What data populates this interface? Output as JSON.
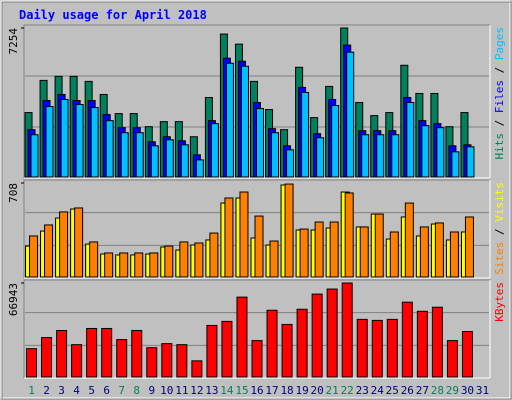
{
  "chart_data": [
    {
      "type": "bar",
      "title": "Daily usage for April 2018",
      "ylim": [
        0,
        7254
      ],
      "yticks": [
        7254
      ],
      "legend_separator": " / ",
      "series": [
        {
          "name": "Hits",
          "color": "#00805c",
          "values": [
            3136,
            4704,
            4900,
            4900,
            4655,
            4018,
            3087,
            3087,
            2450,
            2695,
            2695,
            1960,
            3871,
            6958,
            6468,
            4655,
            3283,
            2303,
            5341,
            2891,
            4410,
            7254,
            3626,
            2989,
            3136,
            5439,
            4067,
            4067,
            2450,
            3136,
            null
          ]
        },
        {
          "name": "Files",
          "color": "#0000ff",
          "values": [
            2303,
            3724,
            4018,
            3724,
            3724,
            3038,
            2401,
            2401,
            1715,
            1960,
            1764,
            1078,
            2744,
            5782,
            5635,
            3626,
            2352,
            1519,
            4361,
            2107,
            3773,
            6419,
            2254,
            2254,
            2254,
            3871,
            2744,
            2597,
            1519,
            1568,
            null
          ]
        },
        {
          "name": "Pages",
          "color": "#00c0ff",
          "values": [
            2058,
            3430,
            3773,
            3528,
            3381,
            2744,
            2156,
            2156,
            1519,
            1813,
            1568,
            833,
            2597,
            5537,
            5390,
            3332,
            2156,
            1323,
            4116,
            1911,
            3479,
            6076,
            2058,
            2058,
            2058,
            3626,
            2499,
            2401,
            1225,
            1470,
            null
          ]
        }
      ]
    },
    {
      "type": "bar",
      "ylim": [
        0,
        708
      ],
      "yticks": [
        708
      ],
      "legend_separator": " / ",
      "legend_order": [
        1,
        0
      ],
      "series": [
        {
          "name": "Visits",
          "color": "#ffff00",
          "values": [
            233,
            346,
            444,
            512,
            248,
            173,
            166,
            166,
            173,
            226,
            203,
            241,
            279,
            557,
            595,
            294,
            241,
            693,
            354,
            354,
            369,
            640,
            377,
            474,
            286,
            452,
            309,
            399,
            279,
            339,
            null
          ]
        },
        {
          "name": "Sites",
          "color": "#ff8000",
          "values": [
            309,
            392,
            490,
            520,
            264,
            181,
            181,
            181,
            181,
            233,
            264,
            256,
            331,
            595,
            640,
            459,
            271,
            700,
            361,
            414,
            414,
            633,
            377,
            474,
            339,
            557,
            377,
            407,
            339,
            452,
            null
          ]
        }
      ]
    },
    {
      "type": "bar",
      "ylim": [
        0,
        66943
      ],
      "yticks": [
        66943
      ],
      "series": [
        {
          "name": "KBytes",
          "color": "#ff0000",
          "values": [
            20160,
            28080,
            33120,
            23040,
            34560,
            34560,
            26640,
            33120,
            20880,
            23760,
            23040,
            11520,
            36720,
            39600,
            56880,
            25920,
            47520,
            37440,
            48240,
            59040,
            62640,
            66943,
            41040,
            40320,
            41040,
            53280,
            46800,
            49680,
            25920,
            32400,
            null
          ]
        }
      ],
      "categories": [
        "1",
        "2",
        "3",
        "4",
        "5",
        "6",
        "7",
        "8",
        "9",
        "10",
        "11",
        "12",
        "13",
        "14",
        "15",
        "16",
        "17",
        "18",
        "19",
        "20",
        "21",
        "22",
        "23",
        "24",
        "25",
        "26",
        "27",
        "28",
        "29",
        "30",
        "31"
      ],
      "category_colors": [
        "#00805c",
        "#000080",
        "#000080",
        "#000080",
        "#000080",
        "#000080",
        "#00805c",
        "#00805c",
        "#000080",
        "#000080",
        "#000080",
        "#000080",
        "#000080",
        "#00805c",
        "#00805c",
        "#000080",
        "#000080",
        "#000080",
        "#000080",
        "#000080",
        "#00805c",
        "#00805c",
        "#000080",
        "#000080",
        "#000080",
        "#000080",
        "#000080",
        "#00805c",
        "#00805c",
        "#000080",
        "#000080"
      ]
    }
  ]
}
